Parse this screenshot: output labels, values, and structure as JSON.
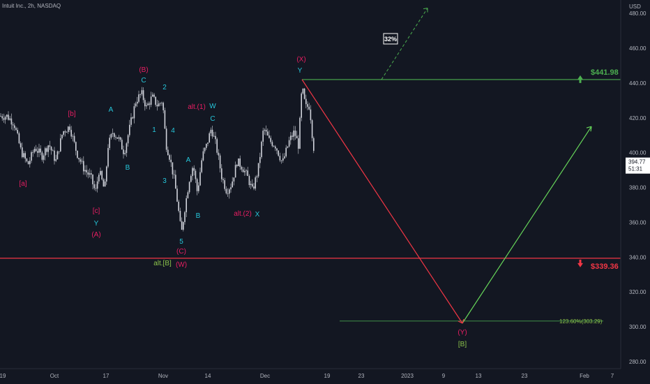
{
  "header": {
    "title": "Intuit Inc., 2h, NASDAQ",
    "currency": "USD"
  },
  "colors": {
    "background": "#131722",
    "candle": "#d1d4dc",
    "resistance": "#4caf50",
    "support": "#f23645",
    "wave_magenta": "#e91e63",
    "wave_cyan": "#26c6da",
    "wave_olive": "#8bc34a"
  },
  "chart_data": {
    "type": "candlestick",
    "y_axis": {
      "ticks": [
        280,
        300,
        320,
        340,
        360,
        380,
        400,
        420,
        440,
        460,
        480
      ],
      "ylim": [
        276,
        484
      ]
    },
    "x_axis": {
      "ticks": [
        "19",
        "Oct",
        "17",
        "Nov",
        "14",
        "Dec",
        "19",
        "23",
        "2023",
        "9",
        "13",
        "23",
        "Feb",
        "7"
      ]
    },
    "price_path": [
      [
        0,
        421
      ],
      [
        10,
        421
      ],
      [
        20,
        417
      ],
      [
        30,
        401
      ],
      [
        40,
        393
      ],
      [
        50,
        403
      ],
      [
        60,
        398
      ],
      [
        70,
        405
      ],
      [
        80,
        395
      ],
      [
        90,
        412
      ],
      [
        100,
        415
      ],
      [
        110,
        400
      ],
      [
        120,
        391
      ],
      [
        130,
        386
      ],
      [
        137,
        377
      ],
      [
        142,
        390
      ],
      [
        150,
        378
      ],
      [
        155,
        404
      ],
      [
        162,
        412
      ],
      [
        170,
        408
      ],
      [
        178,
        400
      ],
      [
        188,
        418
      ],
      [
        195,
        430
      ],
      [
        203,
        434
      ],
      [
        210,
        426
      ],
      [
        218,
        432
      ],
      [
        226,
        427
      ],
      [
        233,
        430
      ],
      [
        238,
        405
      ],
      [
        243,
        398
      ],
      [
        250,
        384
      ],
      [
        255,
        370
      ],
      [
        260,
        353
      ],
      [
        265,
        368
      ],
      [
        272,
        386
      ],
      [
        277,
        393
      ],
      [
        283,
        377
      ],
      [
        290,
        398
      ],
      [
        296,
        404
      ],
      [
        303,
        414
      ],
      [
        310,
        404
      ],
      [
        318,
        386
      ],
      [
        325,
        378
      ],
      [
        332,
        382
      ],
      [
        340,
        395
      ],
      [
        347,
        392
      ],
      [
        355,
        386
      ],
      [
        362,
        378
      ],
      [
        370,
        390
      ],
      [
        378,
        414
      ],
      [
        386,
        407
      ],
      [
        395,
        404
      ],
      [
        405,
        394
      ],
      [
        415,
        407
      ],
      [
        422,
        412
      ],
      [
        428,
        404
      ],
      [
        433,
        438
      ],
      [
        438,
        426
      ],
      [
        444,
        427
      ],
      [
        447,
        413
      ],
      [
        452,
        395
      ]
    ],
    "last_price": {
      "value": 394.77,
      "label": "394.77",
      "countdown": "51:31"
    },
    "levels": [
      {
        "value": 441.98,
        "label": "$441.98",
        "arrow": "up",
        "color": "#4caf50"
      },
      {
        "value": 339.36,
        "label": "$339.36",
        "arrow": "down",
        "color": "#f23645"
      }
    ],
    "fib_level": {
      "value": 303.29,
      "label": "123.60%(303.29)"
    },
    "projections": {
      "red_line": {
        "from": [
          433,
          442
        ],
        "to": [
          663,
          302
        ]
      },
      "green_line": {
        "from": [
          663,
          302
        ],
        "to": [
          848,
          415
        ]
      },
      "dashed_up": {
        "from": [
          547,
          442
        ],
        "to": [
          613,
          483
        ]
      },
      "percent_label": "32%"
    },
    "wave_labels": [
      {
        "text": "[a]",
        "color": "magenta",
        "pos": [
          33,
          263
        ]
      },
      {
        "text": "[b]",
        "color": "magenta",
        "pos": [
          103,
          163
        ]
      },
      {
        "text": "[c]",
        "color": "magenta",
        "pos": [
          138,
          302
        ]
      },
      {
        "text": "Y",
        "color": "cyan",
        "pos": [
          138,
          320
        ]
      },
      {
        "text": "(A)",
        "color": "magenta",
        "pos": [
          138,
          336
        ]
      },
      {
        "text": "A",
        "color": "cyan",
        "pos": [
          159,
          157
        ]
      },
      {
        "text": "B",
        "color": "cyan",
        "pos": [
          183,
          240
        ]
      },
      {
        "text": "(B)",
        "color": "magenta",
        "pos": [
          206,
          100
        ]
      },
      {
        "text": "C",
        "color": "cyan",
        "pos": [
          206,
          115
        ]
      },
      {
        "text": "2",
        "color": "cyan",
        "pos": [
          236,
          125
        ]
      },
      {
        "text": "1",
        "color": "cyan",
        "pos": [
          221,
          186
        ]
      },
      {
        "text": "4",
        "color": "cyan",
        "pos": [
          248,
          187
        ]
      },
      {
        "text": "3",
        "color": "cyan",
        "pos": [
          236,
          259
        ]
      },
      {
        "text": "A",
        "color": "cyan",
        "pos": [
          270,
          229
        ]
      },
      {
        "text": "B",
        "color": "cyan",
        "pos": [
          284,
          309
        ]
      },
      {
        "text": "5",
        "color": "cyan",
        "pos": [
          260,
          346
        ]
      },
      {
        "text": "(C)",
        "color": "magenta",
        "pos": [
          260,
          360
        ]
      },
      {
        "text": "(W)",
        "color": "magenta",
        "pos": [
          260,
          379
        ]
      },
      {
        "text": "alt.[B]",
        "color": "olive",
        "pos": [
          233,
          377
        ]
      },
      {
        "text": "alt.(1)",
        "color": "magenta",
        "pos": [
          282,
          153
        ]
      },
      {
        "text": "W",
        "color": "cyan",
        "pos": [
          305,
          152
        ]
      },
      {
        "text": "C",
        "color": "cyan",
        "pos": [
          305,
          170
        ]
      },
      {
        "text": "alt.(2)",
        "color": "magenta",
        "pos": [
          348,
          306
        ]
      },
      {
        "text": "X",
        "color": "cyan",
        "pos": [
          369,
          307
        ]
      },
      {
        "text": "(X)",
        "color": "magenta",
        "pos": [
          432,
          85
        ]
      },
      {
        "text": "Y",
        "color": "cyan",
        "pos": [
          430,
          101
        ]
      },
      {
        "text": "(Y)",
        "color": "magenta",
        "pos": [
          663,
          476
        ]
      },
      {
        "text": "[B]",
        "color": "olive",
        "pos": [
          663,
          493
        ]
      }
    ]
  }
}
